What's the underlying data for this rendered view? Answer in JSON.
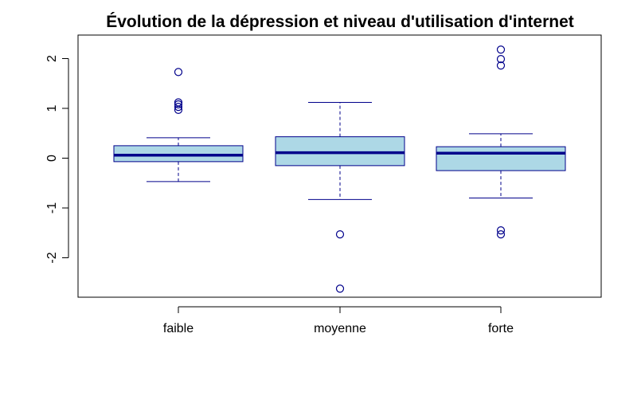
{
  "chart_data": {
    "type": "boxplot",
    "title": "Évolution de la dépression et niveau d'utilisation d'internet",
    "xlabel": "",
    "ylabel": "",
    "ylim": [
      -2.75,
      2.2
    ],
    "yticks": [
      -2,
      -1,
      0,
      1,
      2
    ],
    "ytick_labels": [
      "-2",
      "-1",
      "0",
      "1",
      "2"
    ],
    "grid": false,
    "box_fill": "#add8e6",
    "line_color": "#00008b",
    "categories": [
      "faible",
      "moyenne",
      "forte"
    ],
    "boxes": [
      {
        "category": "faible",
        "whisker_low": -0.47,
        "q1": -0.07,
        "median": 0.06,
        "q3": 0.25,
        "whisker_high": 0.41,
        "outliers": [
          1.73,
          1.12,
          1.08,
          1.03,
          0.97
        ]
      },
      {
        "category": "moyenne",
        "whisker_low": -0.83,
        "q1": -0.15,
        "median": 0.11,
        "q3": 0.43,
        "whisker_high": 1.12,
        "outliers": [
          -1.53,
          -2.62
        ]
      },
      {
        "category": "forte",
        "whisker_low": -0.8,
        "q1": -0.25,
        "median": 0.1,
        "q3": 0.23,
        "whisker_high": 0.49,
        "outliers": [
          2.18,
          1.99,
          1.86,
          -1.45,
          -1.53
        ]
      }
    ]
  }
}
